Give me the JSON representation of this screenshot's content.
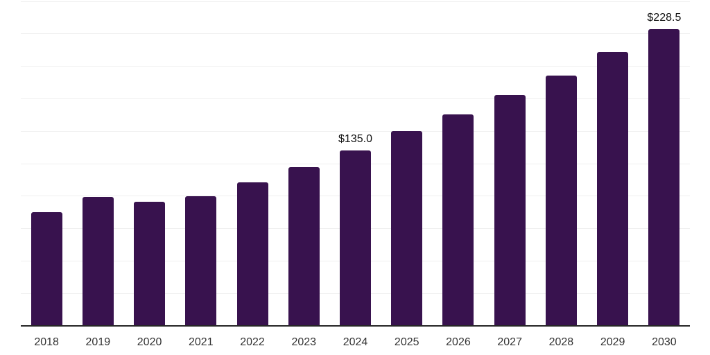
{
  "chart_data": {
    "type": "bar",
    "title": "",
    "xlabel": "",
    "ylabel": "",
    "categories": [
      "2018",
      "2019",
      "2020",
      "2021",
      "2022",
      "2023",
      "2024",
      "2025",
      "2026",
      "2027",
      "2028",
      "2029",
      "2030"
    ],
    "values": [
      87.5,
      99.5,
      95.5,
      100.0,
      110.5,
      122.5,
      135.0,
      150.0,
      163.0,
      178.0,
      193.0,
      211.0,
      228.5
    ],
    "value_labels": [
      null,
      null,
      null,
      null,
      null,
      null,
      "$135.0",
      null,
      null,
      null,
      null,
      null,
      "$228.5"
    ],
    "ylim": [
      0,
      250
    ],
    "grid_step": 25,
    "grid": true,
    "legend": false,
    "y_tick_labels_visible": false,
    "colors": {
      "bar": "#38124E",
      "gridline": "#EFEFEF",
      "axis": "#262626",
      "tick_label": "#333333",
      "value_label": "#111111",
      "background": "#FFFFFF"
    }
  }
}
